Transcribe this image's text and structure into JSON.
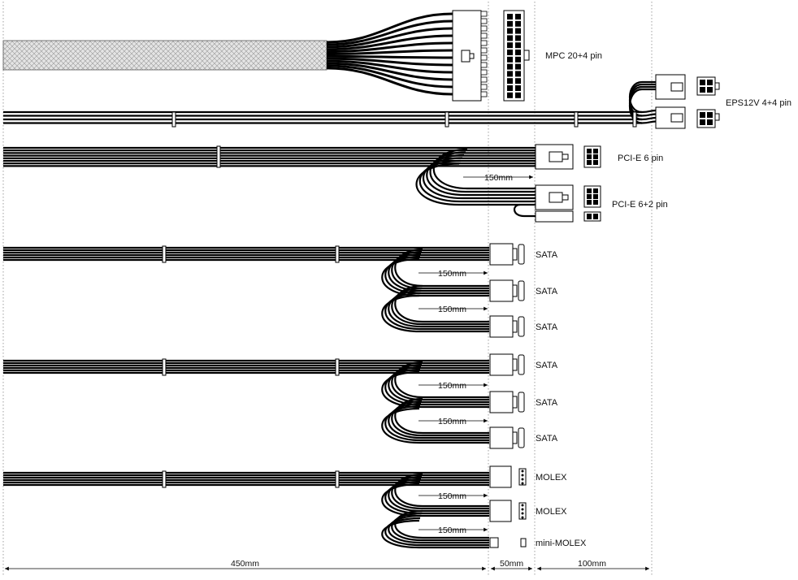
{
  "connectors": {
    "mpc": "MPC 20+4 pin",
    "eps": "EPS12V 4+4 pin",
    "pcie6": "PCI-E 6 pin",
    "pcie62": "PCI-E 6+2 pin",
    "sata": "SATA",
    "molex": "MOLEX",
    "mini_molex": "mini-MOLEX"
  },
  "dimensions": {
    "main": "450mm",
    "mid": "50mm",
    "end": "100mm",
    "spacing": "150mm"
  },
  "colors": {
    "cable": "#000000",
    "sleeve": "#dddddd",
    "connector": "#ffffff",
    "guide": "#888888"
  }
}
